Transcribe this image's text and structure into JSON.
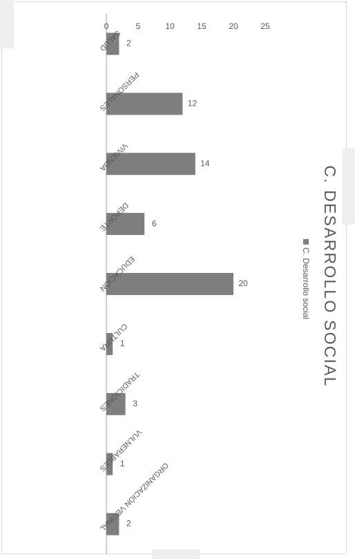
{
  "chart_data": {
    "type": "bar",
    "orientation": "horizontal",
    "title": "C. DESARROLLO SOCIAL",
    "categories": [
      "SALUD",
      "PERSONALES",
      "VIVIENDA",
      "DEPORTE",
      "EDUCACIÓN",
      "CULTURA",
      "TRADICIONES",
      "VULNERABLES",
      "ORGANIZACIÓN VECINAL"
    ],
    "series": [
      {
        "name": "C. Desarrollo social",
        "values": [
          2,
          12,
          14,
          6,
          20,
          1,
          3,
          1,
          2
        ]
      }
    ],
    "ylim": [
      0,
      25
    ],
    "ticks": [
      "0",
      "5",
      "10",
      "15",
      "20",
      "25"
    ],
    "grid": false,
    "legend_position": "top",
    "data_labels": true,
    "rotated_90_clockwise": true,
    "colors": {
      "bar": "#7f7f7f",
      "axis": "#bfbfbf",
      "text": "#595959",
      "title": "#595959"
    }
  }
}
